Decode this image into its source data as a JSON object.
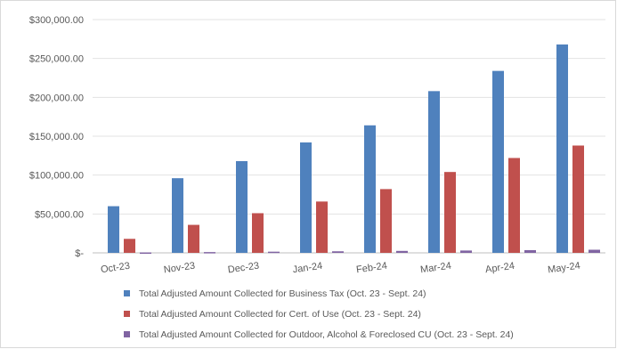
{
  "chart_data": {
    "type": "bar",
    "categories": [
      "Oct-23",
      "Nov-23",
      "Dec-23",
      "Jan-24",
      "Feb-24",
      "Mar-24",
      "Apr-24",
      "May-24"
    ],
    "series": [
      {
        "name": "Total Adjusted Amount Collected for Business Tax (Oct. 23 - Sept. 24)",
        "color": "#4F81BD",
        "values": [
          60000,
          96000,
          118000,
          142000,
          164000,
          208000,
          234000,
          268000
        ]
      },
      {
        "name": "Total Adjusted Amount Collected for Cert. of Use (Oct. 23 - Sept. 24)",
        "color": "#C0504D",
        "values": [
          18000,
          36000,
          51000,
          66000,
          82000,
          104000,
          122000,
          138000
        ]
      },
      {
        "name": "Total Adjusted Amount Collected for Outdoor, Alcohol & Foreclosed CU (Oct. 23 - Sept. 24)",
        "color": "#8064A2",
        "values": [
          500,
          1000,
          1500,
          2000,
          2500,
          3000,
          3500,
          4000
        ]
      }
    ],
    "ylim": [
      0,
      300000
    ],
    "yticks": [
      0,
      50000,
      100000,
      150000,
      200000,
      250000,
      300000
    ],
    "ytick_labels": [
      "$-",
      "$50,000.00",
      "$100,000.00",
      "$150,000.00",
      "$200,000.00",
      "$250,000.00",
      "$300,000.00"
    ],
    "title": "",
    "xlabel": "",
    "ylabel": "",
    "grid": true,
    "legend_position": "bottom",
    "x_tick_rotation": "slight"
  }
}
